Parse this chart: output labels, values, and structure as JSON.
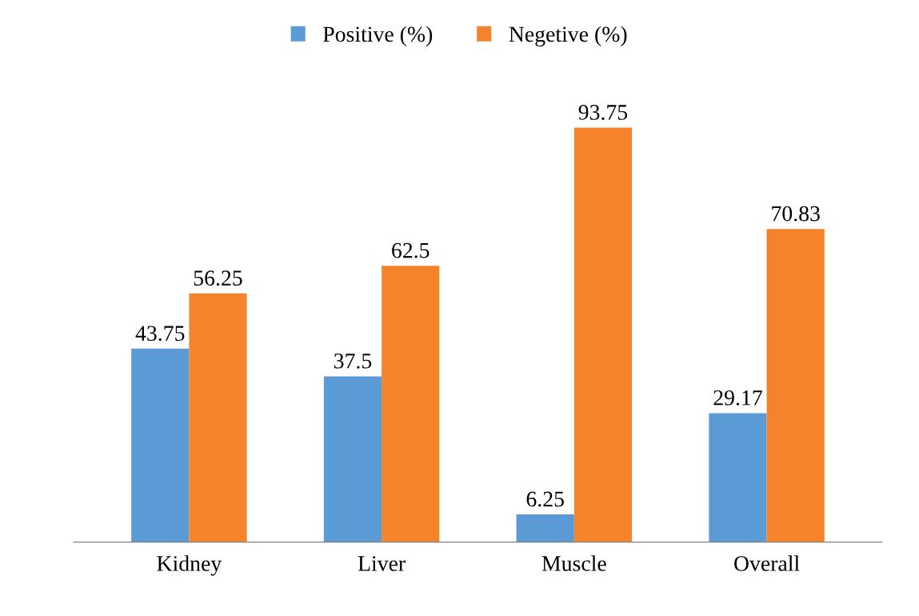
{
  "chart_data": {
    "type": "bar",
    "categories": [
      "Kidney",
      "Liver",
      "Muscle",
      "Overall"
    ],
    "series": [
      {
        "name": "Positive (%)",
        "color": "#5b9bd5",
        "values": [
          43.75,
          37.5,
          6.25,
          29.17
        ]
      },
      {
        "name": "Negetive (%)",
        "color": "#f5832c",
        "values": [
          56.25,
          62.5,
          93.75,
          70.83
        ]
      }
    ],
    "data_labels": true,
    "legend": "top",
    "grid": false
  }
}
